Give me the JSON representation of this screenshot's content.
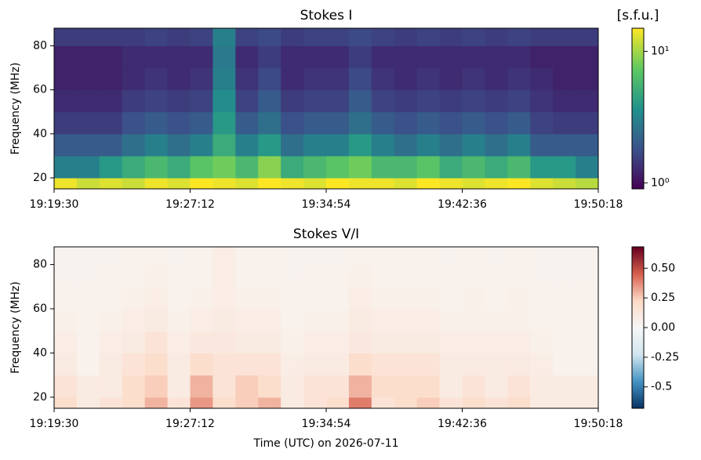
{
  "chart_data": [
    {
      "type": "heatmap",
      "title": "Stokes I",
      "colorbar_label": "[s.f.u.]",
      "ylabel": "Frequency (MHz)",
      "colormap": "viridis",
      "color_log": true,
      "clim": [
        0.9,
        15
      ],
      "cticks": [
        {
          "value": 1,
          "label": "10⁰"
        },
        {
          "value": 10,
          "label": "10¹"
        }
      ],
      "xlim": [
        "19:19:30",
        "19:50:18"
      ],
      "xticks": [
        "19:19:30",
        "19:27:12",
        "19:34:54",
        "19:42:36",
        "19:50:18"
      ],
      "ylim": [
        15,
        88
      ],
      "yticks": [
        20,
        40,
        60,
        80
      ],
      "xbins": [
        "19:19:30",
        "19:20:47",
        "19:22:04",
        "19:23:21",
        "19:24:38",
        "19:25:55",
        "19:27:12",
        "19:28:29",
        "19:29:46",
        "19:31:03",
        "19:32:20",
        "19:33:37",
        "19:34:54",
        "19:36:11",
        "19:37:28",
        "19:38:45",
        "19:40:02",
        "19:41:19",
        "19:42:36",
        "19:43:53",
        "19:45:10",
        "19:46:27",
        "19:47:44",
        "19:49:01",
        "19:50:18"
      ],
      "ybins": [
        15,
        20,
        30,
        40,
        50,
        60,
        70,
        80,
        88
      ],
      "values": [
        [
          14,
          12,
          13,
          12,
          14,
          13,
          15,
          14,
          13,
          15,
          14,
          13,
          15,
          14,
          14,
          13,
          15,
          14,
          13,
          14,
          15,
          13,
          12,
          11
        ],
        [
          3,
          3,
          4,
          5,
          6,
          5,
          7,
          8,
          6,
          9,
          5,
          6,
          7,
          8,
          6,
          6,
          7,
          5,
          6,
          5,
          6,
          4,
          4,
          3
        ],
        [
          2,
          2,
          2,
          2.5,
          3,
          2.5,
          3,
          5,
          3,
          4,
          2.5,
          3,
          3,
          4,
          3,
          2.5,
          3,
          2.5,
          3,
          2.5,
          3,
          2,
          2,
          2
        ],
        [
          1.5,
          1.5,
          1.5,
          1.8,
          2,
          1.8,
          2,
          4,
          2,
          2.5,
          1.8,
          2,
          2,
          2.5,
          2,
          1.8,
          2,
          1.8,
          2,
          1.8,
          2,
          1.6,
          1.5,
          1.5
        ],
        [
          1.3,
          1.3,
          1.3,
          1.5,
          1.6,
          1.5,
          1.6,
          3.5,
          1.6,
          2,
          1.5,
          1.6,
          1.6,
          2,
          1.6,
          1.5,
          1.6,
          1.5,
          1.6,
          1.5,
          1.6,
          1.4,
          1.3,
          1.3
        ],
        [
          1.2,
          1.2,
          1.2,
          1.3,
          1.4,
          1.3,
          1.4,
          3,
          1.4,
          1.7,
          1.3,
          1.4,
          1.4,
          1.7,
          1.4,
          1.3,
          1.4,
          1.3,
          1.4,
          1.3,
          1.4,
          1.3,
          1.2,
          1.2
        ],
        [
          1.2,
          1.2,
          1.2,
          1.3,
          1.3,
          1.3,
          1.3,
          2.8,
          1.3,
          1.5,
          1.3,
          1.3,
          1.3,
          1.5,
          1.3,
          1.3,
          1.3,
          1.3,
          1.3,
          1.3,
          1.3,
          1.2,
          1.2,
          1.2
        ],
        [
          1.5,
          1.5,
          1.5,
          1.5,
          1.6,
          1.5,
          1.6,
          3,
          1.6,
          1.7,
          1.5,
          1.6,
          1.6,
          1.7,
          1.6,
          1.5,
          1.6,
          1.5,
          1.6,
          1.5,
          1.6,
          1.5,
          1.5,
          1.5
        ]
      ]
    },
    {
      "type": "heatmap",
      "title": "Stokes V/I",
      "ylabel": "Frequency (MHz)",
      "xlabel": "Time (UTC) on 2026-07-11",
      "colormap": "RdBu_r",
      "color_log": false,
      "clim": [
        -0.68,
        0.68
      ],
      "cticks": [
        -0.5,
        -0.25,
        {
          "value": 0,
          "label": "0.00"
        },
        0.25,
        {
          "value": 0.5,
          "label": "0.50"
        }
      ],
      "xlim": [
        "19:19:30",
        "19:50:18"
      ],
      "xticks": [
        "19:19:30",
        "19:27:12",
        "19:34:54",
        "19:42:36",
        "19:50:18"
      ],
      "ylim": [
        15,
        88
      ],
      "yticks": [
        20,
        40,
        60,
        80
      ],
      "xbins": [
        "19:19:30",
        "19:20:47",
        "19:22:04",
        "19:23:21",
        "19:24:38",
        "19:25:55",
        "19:27:12",
        "19:28:29",
        "19:29:46",
        "19:31:03",
        "19:32:20",
        "19:33:37",
        "19:34:54",
        "19:36:11",
        "19:37:28",
        "19:38:45",
        "19:40:02",
        "19:41:19",
        "19:42:36",
        "19:43:53",
        "19:45:10",
        "19:46:27",
        "19:47:44",
        "19:49:01",
        "19:50:18"
      ],
      "ybins": [
        15,
        20,
        30,
        40,
        50,
        60,
        70,
        80,
        88
      ],
      "values": [
        [
          0.2,
          0.1,
          0.15,
          0.2,
          0.3,
          0.15,
          0.35,
          0.2,
          0.25,
          0.3,
          0.1,
          0.15,
          0.2,
          0.4,
          0.15,
          0.2,
          0.25,
          0.15,
          0.2,
          0.15,
          0.2,
          0.1,
          0.1,
          0.1
        ],
        [
          0.15,
          0.1,
          0.1,
          0.2,
          0.25,
          0.1,
          0.3,
          0.15,
          0.25,
          0.2,
          0.1,
          0.15,
          0.15,
          0.3,
          0.2,
          0.2,
          0.2,
          0.1,
          0.15,
          0.1,
          0.15,
          0.1,
          0.1,
          0.1
        ],
        [
          0.1,
          0.05,
          0.1,
          0.15,
          0.2,
          0.1,
          0.2,
          0.15,
          0.15,
          0.15,
          0.08,
          0.1,
          0.1,
          0.2,
          0.15,
          0.15,
          0.15,
          0.1,
          0.1,
          0.1,
          0.1,
          0.08,
          0.05,
          0.05
        ],
        [
          0.08,
          0.05,
          0.08,
          0.1,
          0.15,
          0.08,
          0.12,
          0.12,
          0.1,
          0.1,
          0.06,
          0.08,
          0.08,
          0.12,
          0.1,
          0.1,
          0.1,
          0.08,
          0.08,
          0.08,
          0.08,
          0.06,
          0.05,
          0.05
        ],
        [
          0.06,
          0.05,
          0.06,
          0.08,
          0.1,
          0.06,
          0.08,
          0.1,
          0.08,
          0.08,
          0.05,
          0.06,
          0.06,
          0.1,
          0.08,
          0.08,
          0.08,
          0.06,
          0.06,
          0.06,
          0.06,
          0.05,
          0.05,
          0.05
        ],
        [
          0.05,
          0.05,
          0.05,
          0.06,
          0.08,
          0.05,
          0.06,
          0.08,
          0.06,
          0.06,
          0.05,
          0.05,
          0.05,
          0.08,
          0.06,
          0.06,
          0.06,
          0.05,
          0.06,
          0.05,
          0.06,
          0.05,
          0.05,
          0.05
        ],
        [
          0.04,
          0.04,
          0.05,
          0.05,
          0.06,
          0.05,
          0.05,
          0.08,
          0.05,
          0.05,
          0.04,
          0.05,
          0.05,
          0.06,
          0.05,
          0.05,
          0.05,
          0.05,
          0.05,
          0.05,
          0.05,
          0.04,
          0.04,
          0.04
        ],
        [
          0.04,
          0.04,
          0.04,
          0.05,
          0.05,
          0.04,
          0.05,
          0.08,
          0.05,
          0.05,
          0.04,
          0.04,
          0.04,
          0.05,
          0.05,
          0.05,
          0.05,
          0.04,
          0.05,
          0.04,
          0.05,
          0.04,
          0.04,
          0.04
        ]
      ]
    }
  ]
}
